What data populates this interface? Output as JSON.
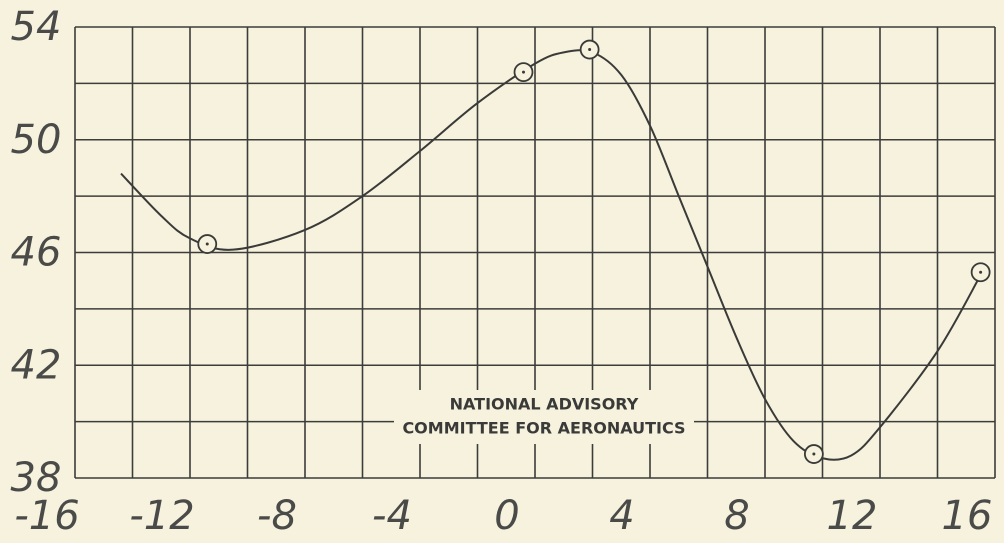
{
  "chart_data": {
    "type": "line",
    "xlim": [
      -16,
      16
    ],
    "ylim": [
      38,
      54
    ],
    "xticks": [
      -16,
      -12,
      -8,
      -4,
      0,
      4,
      8,
      12,
      16
    ],
    "yticks": [
      38,
      42,
      46,
      50,
      54
    ],
    "xgrid": [
      -16,
      -14,
      -12,
      -10,
      -8,
      -6,
      -4,
      -2,
      0,
      2,
      4,
      6,
      8,
      10,
      12,
      14,
      16
    ],
    "ygrid": [
      38,
      40,
      42,
      44,
      46,
      48,
      50,
      52,
      54
    ],
    "annotations": [
      "NATIONAL ADVISORY",
      "COMMITTEE FOR AERONAUTICS"
    ],
    "color": "#3a3a38",
    "points": {
      "x": [
        -11.4,
        -0.4,
        1.9,
        9.7,
        15.5
      ],
      "y": [
        46.3,
        52.4,
        53.2,
        38.85,
        45.3
      ]
    },
    "curve": {
      "x": [
        -14.4,
        -13,
        -12,
        -10.5,
        -8,
        -6,
        -4,
        -2,
        0,
        1,
        2,
        3,
        4,
        5,
        6,
        7,
        8,
        9,
        10,
        11,
        12,
        14,
        15.5
      ],
      "y": [
        48.8,
        47.3,
        46.5,
        46.1,
        46.8,
        48,
        49.6,
        51.3,
        52.7,
        53.1,
        53.1,
        52.3,
        50.5,
        48,
        45.5,
        43,
        40.8,
        39.3,
        38.7,
        38.8,
        39.8,
        42.5,
        45.2
      ]
    }
  }
}
